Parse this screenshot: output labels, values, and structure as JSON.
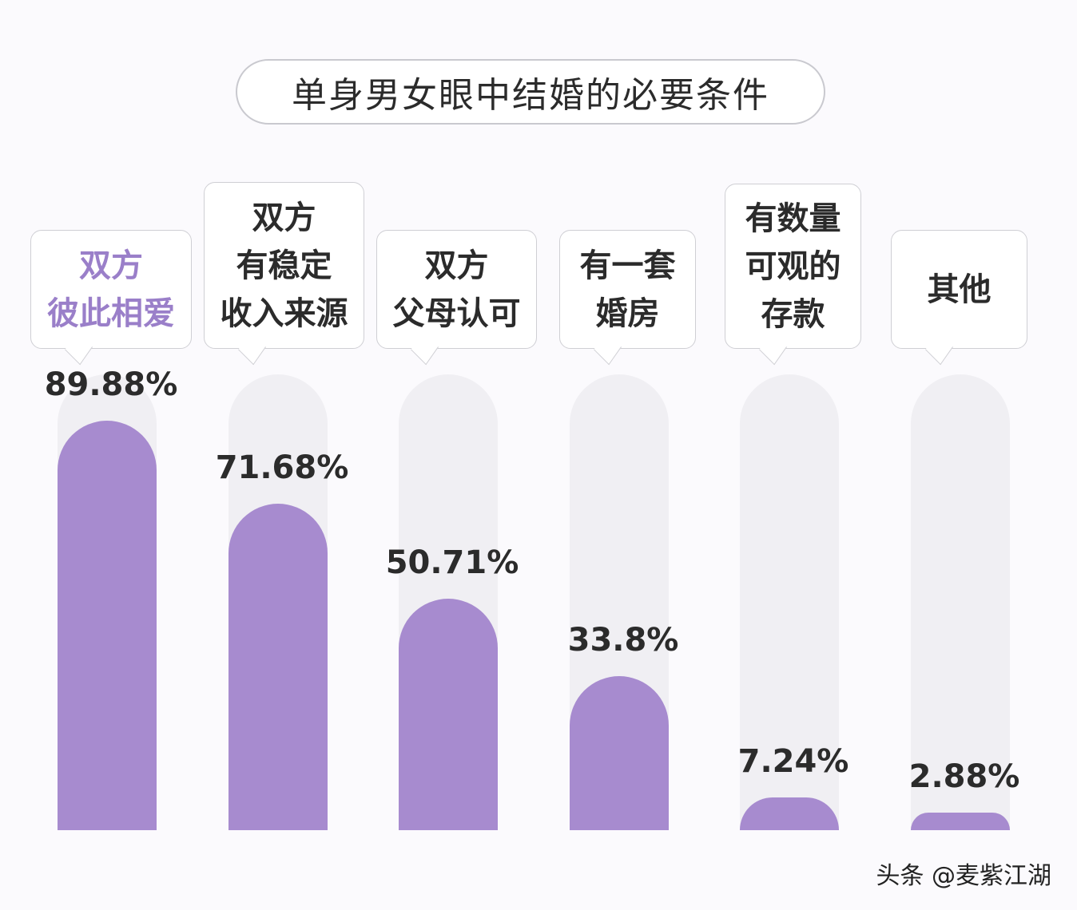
{
  "chart_data": {
    "type": "bar",
    "title": "单身男女眼中结婚的必要条件",
    "categories": [
      [
        "双方",
        "彼此相爱"
      ],
      [
        "双方",
        "有稳定",
        "收入来源"
      ],
      [
        "双方",
        "父母认可"
      ],
      [
        "有一套",
        "婚房"
      ],
      [
        "有数量",
        "可观的",
        "存款"
      ],
      [
        "其他"
      ]
    ],
    "values": [
      89.88,
      71.68,
      50.71,
      33.8,
      7.24,
      2.88
    ],
    "value_labels": [
      "89.88%",
      "71.68%",
      "50.71%",
      "33.8%",
      "7.24%",
      "2.88%"
    ],
    "ylim": [
      0,
      100
    ],
    "grid": false,
    "colors": {
      "bar": "#a78bcf",
      "track": "#f0eff3",
      "highlight_label": "#9a7fc9"
    }
  },
  "watermark": "头条 @麦紫江湖"
}
